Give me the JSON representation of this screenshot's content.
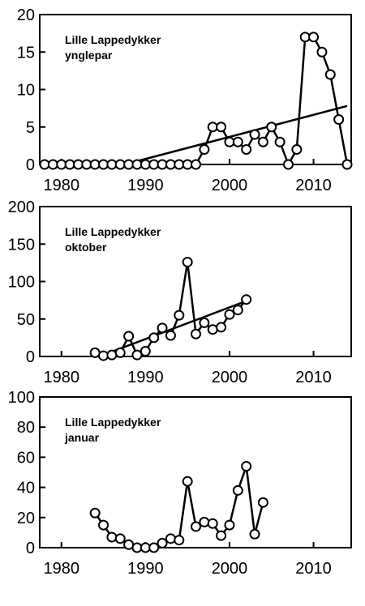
{
  "chart_data": [
    {
      "type": "line",
      "annotation": [
        "Lille Lappedykker",
        "ynglepar"
      ],
      "xlim": [
        1978,
        2014
      ],
      "ylim": [
        0,
        20
      ],
      "xticks": [
        1980,
        1990,
        2000,
        2010
      ],
      "yticks": [
        0,
        5,
        10,
        15,
        20
      ],
      "grid": false,
      "legend": "none",
      "series": [
        {
          "x": [
            1978,
            1979,
            1980,
            1981,
            1982,
            1983,
            1984,
            1985,
            1986,
            1987,
            1988,
            1989,
            1990,
            1991,
            1992,
            1993,
            1994,
            1995,
            1996,
            1997,
            1998,
            1999,
            2000,
            2001,
            2002,
            2003,
            2004,
            2005,
            2006,
            2007,
            2008,
            2009,
            2010,
            2011,
            2012,
            2013,
            2014
          ],
          "y": [
            0,
            0,
            0,
            0,
            0,
            0,
            0,
            0,
            0,
            0,
            0,
            0,
            0,
            0,
            0,
            0,
            0,
            0,
            0,
            2,
            5,
            5,
            3,
            3,
            2,
            4,
            3,
            5,
            3,
            0,
            2,
            17,
            17,
            15,
            12,
            6,
            0
          ]
        }
      ],
      "trend": {
        "x": [
          1987.5,
          2014
        ],
        "y": [
          0,
          7.8
        ]
      }
    },
    {
      "type": "line",
      "annotation": [
        "Lille Lappedykker",
        "oktober"
      ],
      "xlim": [
        1978,
        2014
      ],
      "ylim": [
        0,
        200
      ],
      "xticks": [
        1980,
        1990,
        2000,
        2010
      ],
      "yticks": [
        0,
        50,
        100,
        150,
        200
      ],
      "grid": false,
      "legend": "none",
      "series": [
        {
          "x": [
            1984,
            1985,
            1986,
            1987,
            1988,
            1989,
            1990,
            1991,
            1992,
            1993,
            1994,
            1995,
            1996,
            1997,
            1998,
            1999,
            2000,
            2001,
            2002
          ],
          "y": [
            5,
            1,
            2,
            5,
            27,
            2,
            7,
            25,
            38,
            28,
            55,
            126,
            30,
            45,
            36,
            39,
            56,
            62,
            76
          ]
        }
      ],
      "trend": {
        "x": [
          1984.5,
          2002
        ],
        "y": [
          0,
          74
        ]
      }
    },
    {
      "type": "line",
      "annotation": [
        "Lille Lappedykker",
        "januar"
      ],
      "xlim": [
        1978,
        2014
      ],
      "ylim": [
        0,
        100
      ],
      "xticks": [
        1980,
        1990,
        2000,
        2010
      ],
      "yticks": [
        0,
        20,
        40,
        60,
        80,
        100
      ],
      "grid": false,
      "legend": "none",
      "series": [
        {
          "x": [
            1984,
            1985,
            1986,
            1987,
            1988,
            1989,
            1990,
            1991,
            1992,
            1993,
            1994,
            1995,
            1996,
            1997,
            1998,
            1999,
            2000,
            2001,
            2002,
            2003,
            2004
          ],
          "y": [
            23,
            15,
            7,
            6,
            2,
            0,
            0,
            0,
            3,
            6,
            5,
            44,
            14,
            17,
            16,
            8,
            15,
            38,
            54,
            9,
            30
          ]
        }
      ]
    }
  ]
}
